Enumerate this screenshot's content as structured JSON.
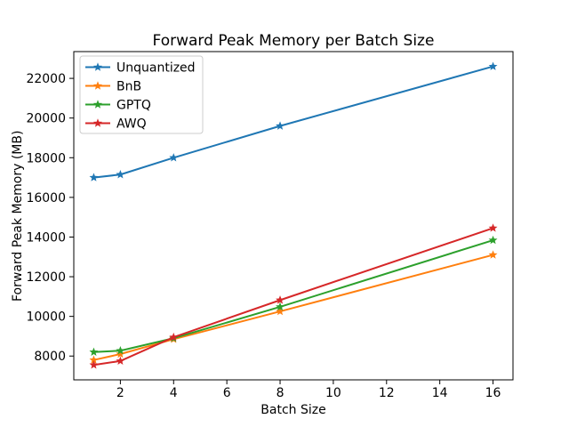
{
  "chart_data": {
    "type": "line",
    "title": "Forward Peak Memory per Batch Size",
    "xlabel": "Batch Size",
    "ylabel": "Forward Peak Memory (MB)",
    "x": [
      1,
      2,
      4,
      8,
      16
    ],
    "series": [
      {
        "name": "Unquantized",
        "color": "#1f77b4",
        "marker": "star",
        "values": [
          17000,
          17150,
          18000,
          19600,
          22600
        ]
      },
      {
        "name": "BnB",
        "color": "#ff7f0e",
        "marker": "star",
        "values": [
          7800,
          8100,
          8850,
          10250,
          13100
        ]
      },
      {
        "name": "GPTQ",
        "color": "#2ca02c",
        "marker": "star",
        "values": [
          8200,
          8270,
          8900,
          10480,
          13840
        ]
      },
      {
        "name": "AWQ",
        "color": "#d62728",
        "marker": "star",
        "values": [
          7550,
          7750,
          8950,
          10820,
          14450
        ]
      }
    ],
    "xlim": [
      0.25,
      16.75
    ],
    "ylim": [
      6800,
      23350
    ],
    "xticks": [
      2,
      4,
      6,
      8,
      10,
      12,
      14,
      16
    ],
    "yticks": [
      8000,
      10000,
      12000,
      14000,
      16000,
      18000,
      20000,
      22000
    ],
    "grid": false,
    "legend_position": "upper-left",
    "axis_color": "#000000",
    "legend_edge_color": "#cccccc",
    "legend_face_color": "rgba(255,255,255,0.8)"
  }
}
